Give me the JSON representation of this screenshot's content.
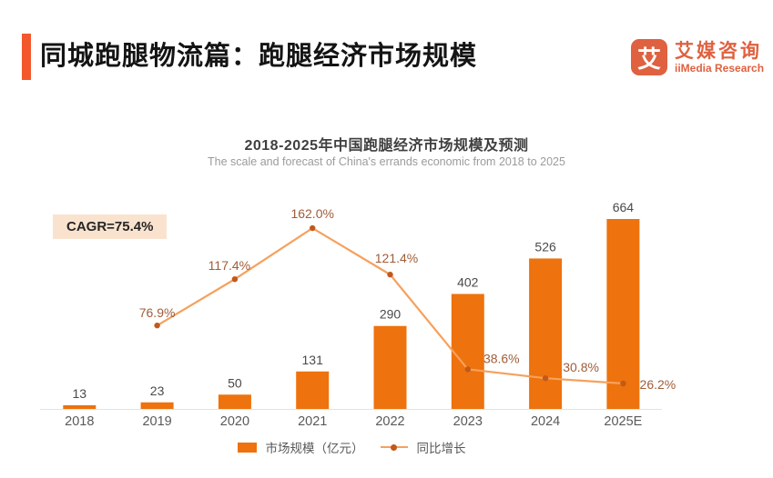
{
  "header": {
    "title": "同城跑腿物流篇：跑腿经济市场规模",
    "logo": {
      "icon_char": "艾",
      "name_cn": "艾媒咨询",
      "name_en": "iiMedia Research"
    }
  },
  "chart": {
    "title": "2018-2025年中国跑腿经济市场规模及预测",
    "subtitle": "The scale and forecast of China's errands economic from 2018 to 2025",
    "cagr_label": "CAGR=75.4%"
  },
  "chart_data": {
    "type": "bar+line",
    "title": "2018-2025年中国跑腿经济市场规模及预测",
    "subtitle": "The scale and forecast of China's errands economic from 2018 to 2025",
    "categories": [
      "2018",
      "2019",
      "2020",
      "2021",
      "2022",
      "2023",
      "2024",
      "2025E"
    ],
    "series": [
      {
        "name": "市场规模（亿元）",
        "type": "bar",
        "values": [
          13,
          23,
          50,
          131,
          290,
          402,
          526,
          664
        ],
        "value_labels": [
          "13",
          "23",
          "50",
          "131",
          "290",
          "402",
          "526",
          "664"
        ],
        "color": "#EE720D"
      },
      {
        "name": "同比增长",
        "type": "line",
        "unit": "%",
        "values": [
          null,
          76.9,
          117.4,
          162.0,
          121.4,
          38.6,
          30.8,
          26.2
        ],
        "value_labels": [
          "",
          "76.9%",
          "117.4%",
          "162.0%",
          "121.4%",
          "38.6%",
          "30.8%",
          "26.2%"
        ],
        "color": "#F5A15D",
        "marker_color": "#C1591B",
        "label_color": "#A05C38"
      }
    ],
    "annotations": [
      "CAGR=75.4%"
    ],
    "legend_position": "bottom",
    "grid": false,
    "y_axis_visible": false,
    "bar_value_color": "#4A4A4A",
    "axis_label_color": "#595959",
    "axis_line_color": "#E3E3E3"
  },
  "legend": {
    "bar_label": "市场规模（亿元）",
    "line_label": "同比增长"
  }
}
